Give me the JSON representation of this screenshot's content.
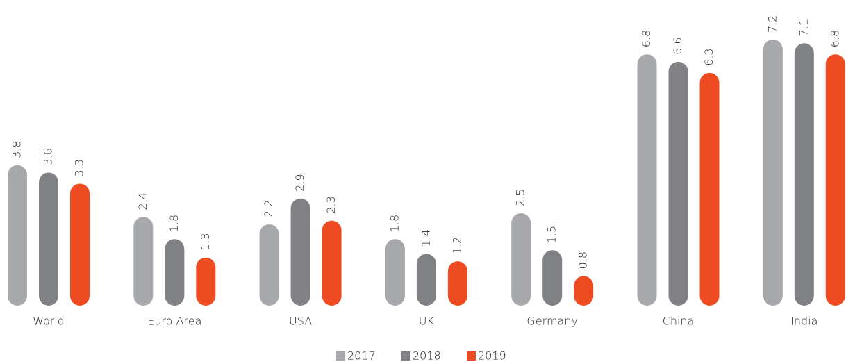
{
  "chart_data": {
    "type": "bar",
    "categories": [
      "World",
      "Euro Area",
      "USA",
      "UK",
      "Germany",
      "China",
      "India"
    ],
    "series": [
      {
        "name": "2017",
        "color": "#a7a8ab",
        "values": [
          3.8,
          2.4,
          2.2,
          1.8,
          2.5,
          6.8,
          7.2
        ]
      },
      {
        "name": "2018",
        "color": "#808184",
        "values": [
          3.6,
          1.8,
          2.9,
          1.4,
          1.5,
          6.6,
          7.1
        ]
      },
      {
        "name": "2019",
        "color": "#ef4b23",
        "values": [
          3.3,
          1.3,
          2.3,
          1.2,
          0.8,
          6.3,
          6.8
        ]
      }
    ]
  }
}
